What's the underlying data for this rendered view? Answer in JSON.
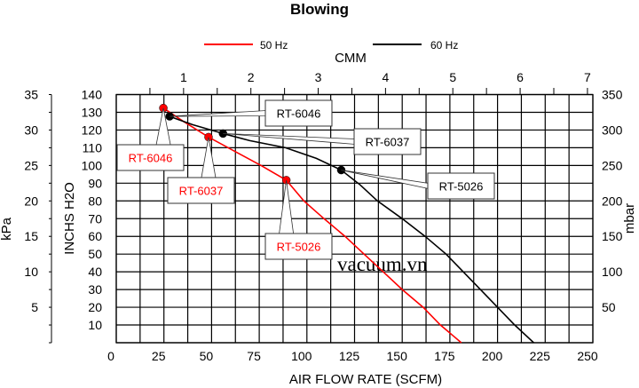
{
  "chart_data": {
    "type": "line",
    "title": "Blowing",
    "xlabel": "AIR FLOW RATE (SCFM)",
    "x2label": "CMM",
    "ylabel": "INCHS H2O",
    "ylabel_left": "kPa",
    "ylabel_right": "mbar",
    "xlim": [
      0,
      250
    ],
    "ylim": [
      0,
      140
    ],
    "x_ticks": [
      0,
      25,
      50,
      75,
      100,
      125,
      150,
      175,
      200,
      225,
      250
    ],
    "x2_ticks": [
      1,
      2,
      3,
      4,
      5,
      6,
      7
    ],
    "y_ticks": [
      10,
      20,
      30,
      40,
      50,
      60,
      70,
      80,
      90,
      100,
      110,
      120,
      130,
      140
    ],
    "kpa_ticks": [
      5,
      10,
      15,
      20,
      25,
      30,
      35
    ],
    "mbar_ticks": [
      50,
      100,
      150,
      200,
      250,
      300,
      350
    ],
    "grid": true,
    "legend_position": "top",
    "series": [
      {
        "name": "50 Hz",
        "color": "#ff0000",
        "points": [
          [
            24.7,
            132.4
          ],
          [
            35,
            125
          ],
          [
            48.4,
            116
          ],
          [
            58.7,
            110
          ],
          [
            76,
            100
          ],
          [
            89.2,
            91.7
          ],
          [
            98.4,
            80
          ],
          [
            109,
            70
          ],
          [
            120,
            60
          ],
          [
            130,
            50
          ],
          [
            140,
            40
          ],
          [
            150,
            30
          ],
          [
            161,
            20
          ],
          [
            170,
            10
          ],
          [
            181,
            0
          ]
        ],
        "markers": [
          {
            "label": "RT-6046",
            "x": 24.7,
            "y": 132.4
          },
          {
            "label": "RT-6037",
            "x": 48.4,
            "y": 116
          },
          {
            "label": "RT-5026",
            "x": 89.2,
            "y": 91.7
          }
        ]
      },
      {
        "name": "60 Hz",
        "color": "#000000",
        "points": [
          [
            28,
            127.7
          ],
          [
            40,
            123
          ],
          [
            56,
            118
          ],
          [
            70,
            114
          ],
          [
            88.8,
            110
          ],
          [
            105,
            104
          ],
          [
            118,
            97.4
          ],
          [
            128,
            89
          ],
          [
            137,
            80
          ],
          [
            150,
            70
          ],
          [
            162,
            60
          ],
          [
            173,
            50
          ],
          [
            182,
            40
          ],
          [
            191,
            30
          ],
          [
            200,
            20
          ],
          [
            209,
            10
          ],
          [
            219,
            0
          ]
        ],
        "markers": [
          {
            "label": "RT-6046",
            "x": 28,
            "y": 127.7
          },
          {
            "label": "RT-6037",
            "x": 56,
            "y": 118
          },
          {
            "label": "RT-5026",
            "x": 118,
            "y": 97.4
          }
        ]
      }
    ],
    "watermark": "vacuum.vn"
  }
}
